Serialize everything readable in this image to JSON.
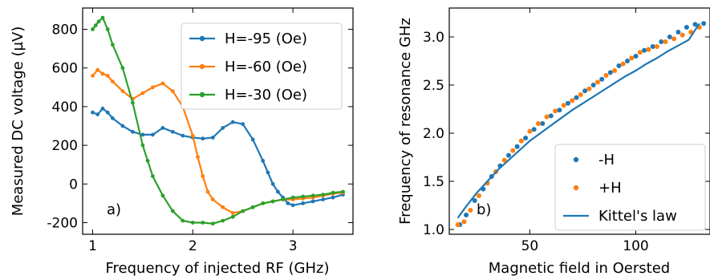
{
  "chart_data": [
    {
      "type": "line",
      "panel_label": "a)",
      "xlabel": "Frequency of injected RF (GHz)",
      "ylabel": "Measured DC voltage (µV)",
      "xlim": [
        0.9,
        3.6
      ],
      "ylim": [
        -260,
        910
      ],
      "xticks": [
        1,
        2,
        3
      ],
      "yticks": [
        -200,
        0,
        200,
        400,
        600,
        800
      ],
      "legend": "top-right",
      "grid": false,
      "series": [
        {
          "name": "H=-95 (Oe)",
          "color": "#1f77b4",
          "x": [
            1.0,
            1.05,
            1.1,
            1.15,
            1.2,
            1.3,
            1.4,
            1.5,
            1.6,
            1.7,
            1.8,
            1.9,
            2.0,
            2.1,
            2.2,
            2.3,
            2.4,
            2.5,
            2.6,
            2.7,
            2.75,
            2.8,
            2.85,
            2.9,
            2.95,
            3.0,
            3.1,
            3.2,
            3.3,
            3.4,
            3.5
          ],
          "y": [
            370,
            360,
            390,
            370,
            340,
            300,
            270,
            255,
            255,
            290,
            270,
            250,
            240,
            235,
            240,
            290,
            320,
            310,
            230,
            120,
            60,
            0,
            -40,
            -70,
            -100,
            -110,
            -100,
            -90,
            -80,
            -70,
            -55
          ]
        },
        {
          "name": "H=-60 (Oe)",
          "color": "#ff7f0e",
          "x": [
            1.0,
            1.05,
            1.1,
            1.15,
            1.2,
            1.3,
            1.4,
            1.5,
            1.6,
            1.7,
            1.8,
            1.9,
            2.0,
            2.05,
            2.1,
            2.15,
            2.2,
            2.3,
            2.4,
            2.5,
            2.6,
            2.7,
            2.8,
            2.9,
            3.0,
            3.1,
            3.2,
            3.3,
            3.4,
            3.5
          ],
          "y": [
            560,
            590,
            570,
            560,
            530,
            480,
            440,
            470,
            500,
            520,
            480,
            400,
            250,
            140,
            40,
            -40,
            -80,
            -120,
            -150,
            -140,
            -120,
            -100,
            -90,
            -80,
            -80,
            -75,
            -70,
            -60,
            -50,
            -45
          ]
        },
        {
          "name": "H=-30 (Oe)",
          "color": "#2ca02c",
          "x": [
            1.0,
            1.03,
            1.06,
            1.1,
            1.15,
            1.2,
            1.3,
            1.4,
            1.5,
            1.55,
            1.6,
            1.7,
            1.8,
            1.9,
            2.0,
            2.1,
            2.2,
            2.3,
            2.4,
            2.5,
            2.6,
            2.7,
            2.8,
            2.9,
            3.0,
            3.1,
            3.2,
            3.3,
            3.4,
            3.5
          ],
          "y": [
            800,
            820,
            840,
            860,
            800,
            720,
            600,
            420,
            200,
            120,
            40,
            -60,
            -140,
            -190,
            -200,
            -200,
            -205,
            -190,
            -170,
            -140,
            -120,
            -100,
            -90,
            -80,
            -70,
            -65,
            -60,
            -55,
            -45,
            -40
          ]
        }
      ]
    },
    {
      "type": "scatter",
      "panel_label": "b)",
      "xlabel": "Magnetic field in Oersted",
      "ylabel": "Frequency of resonance GHz",
      "xlim": [
        12,
        135
      ],
      "ylim": [
        0.95,
        3.3
      ],
      "xticks": [
        50,
        100
      ],
      "yticks": [
        1.0,
        1.5,
        2.0,
        2.5,
        3.0
      ],
      "legend": "bottom-right",
      "grid": false,
      "series": [
        {
          "name": "-H",
          "color": "#1f77b4",
          "marker": "dot",
          "x": [
            17,
            20,
            24,
            28,
            32,
            36,
            40,
            44,
            48,
            52,
            56,
            60,
            64,
            68,
            72,
            76,
            80,
            84,
            88,
            92,
            96,
            100,
            104,
            108,
            112,
            116,
            120,
            124,
            128,
            132
          ],
          "y": [
            1.05,
            1.15,
            1.3,
            1.42,
            1.55,
            1.66,
            1.77,
            1.86,
            1.95,
            2.04,
            2.1,
            2.18,
            2.24,
            2.31,
            2.37,
            2.44,
            2.5,
            2.56,
            2.63,
            2.7,
            2.75,
            2.8,
            2.86,
            2.9,
            2.95,
            3.0,
            3.05,
            3.1,
            3.13,
            3.14
          ]
        },
        {
          "name": "+H",
          "color": "#ff7f0e",
          "marker": "dot",
          "x": [
            16,
            19,
            22,
            26,
            30,
            34,
            38,
            42,
            46,
            50,
            54,
            58,
            62,
            66,
            70,
            74,
            78,
            82,
            86,
            90,
            94,
            98,
            102,
            106,
            110,
            114,
            118,
            122,
            126,
            130
          ],
          "y": [
            1.05,
            1.08,
            1.2,
            1.35,
            1.48,
            1.6,
            1.72,
            1.82,
            1.92,
            2.02,
            2.1,
            2.17,
            2.23,
            2.29,
            2.34,
            2.4,
            2.46,
            2.53,
            2.6,
            2.65,
            2.72,
            2.78,
            2.84,
            2.87,
            2.9,
            2.95,
            2.98,
            3.02,
            3.05,
            3.1
          ]
        },
        {
          "name": "Kittel's law",
          "color": "#1f77b4",
          "type": "line",
          "x": [
            16,
            20,
            25,
            30,
            35,
            40,
            45,
            50,
            55,
            60,
            65,
            70,
            75,
            80,
            85,
            90,
            95,
            100,
            105,
            110,
            115,
            120,
            125,
            130
          ],
          "y": [
            1.12,
            1.24,
            1.38,
            1.5,
            1.62,
            1.72,
            1.82,
            1.92,
            2.0,
            2.08,
            2.16,
            2.24,
            2.31,
            2.38,
            2.45,
            2.52,
            2.59,
            2.65,
            2.72,
            2.78,
            2.85,
            2.91,
            2.97,
            3.14
          ]
        }
      ]
    }
  ]
}
